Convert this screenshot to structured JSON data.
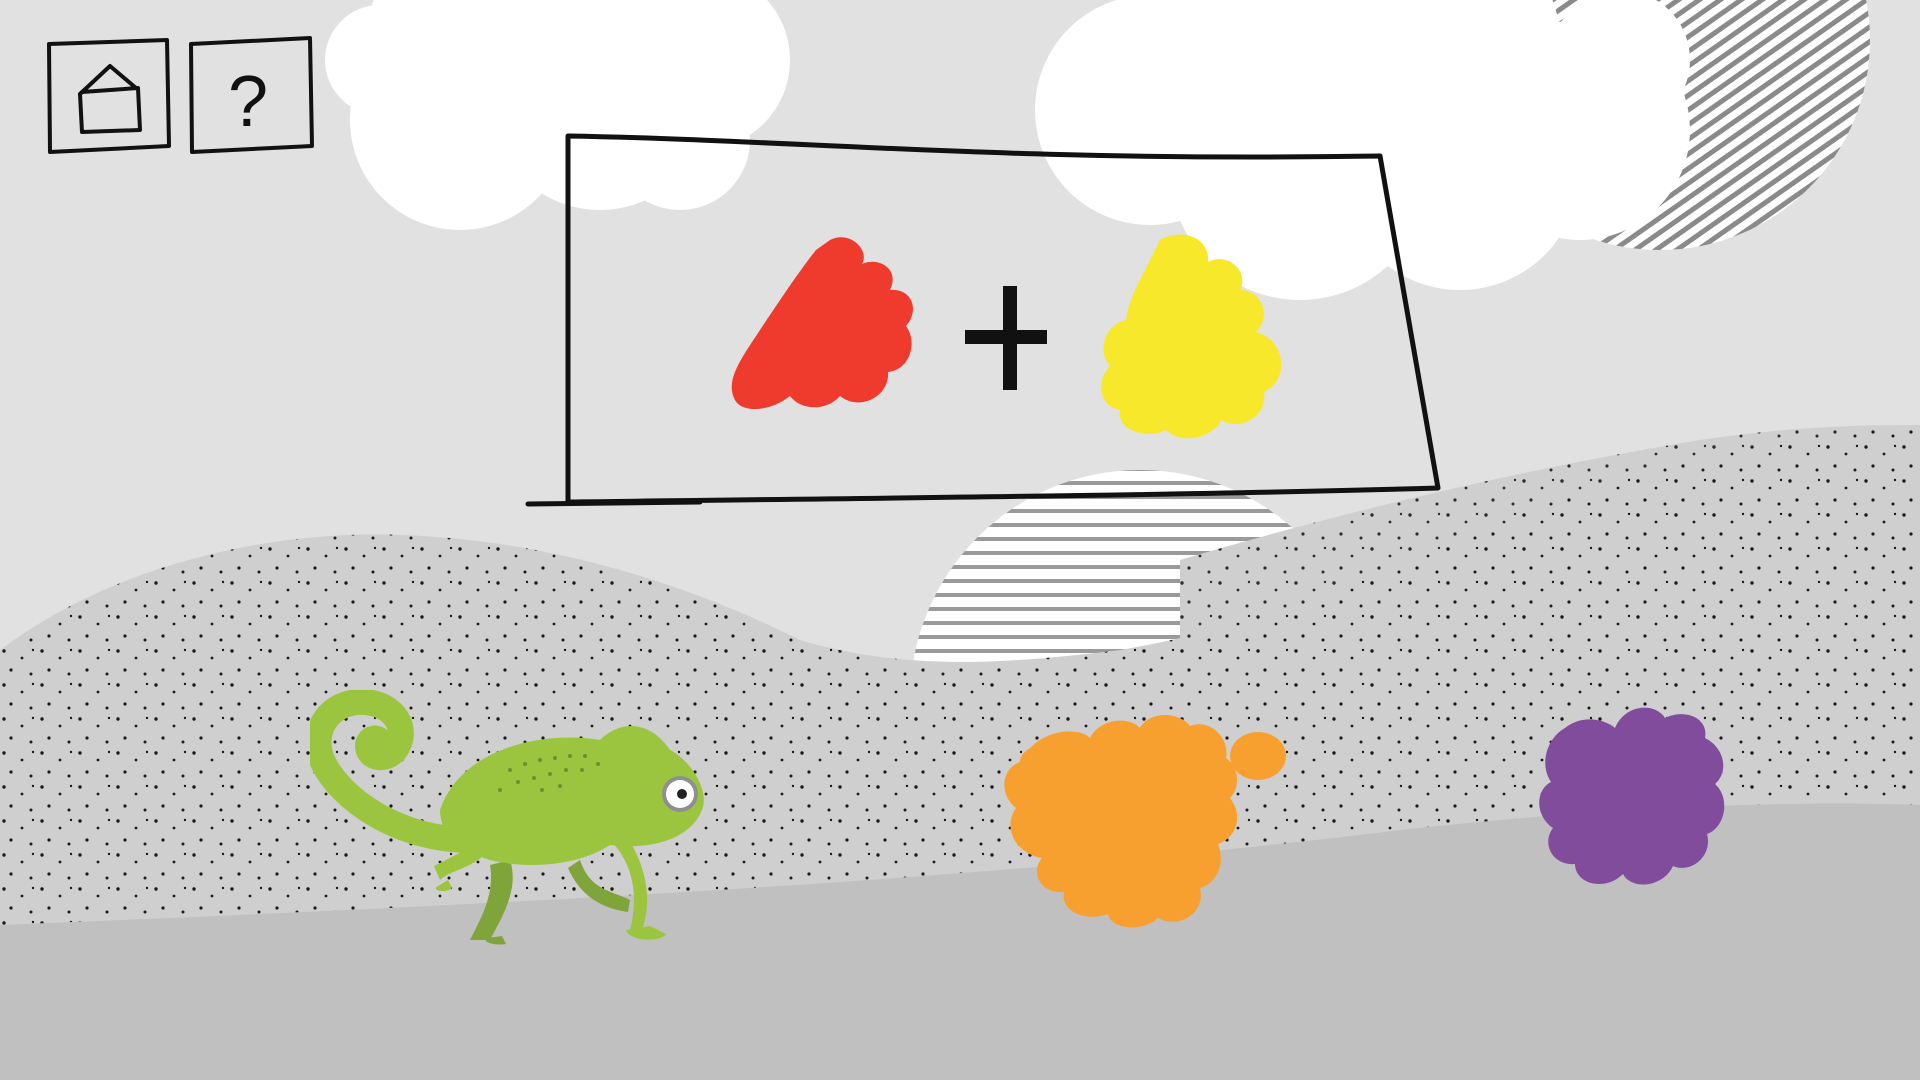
{
  "scene": {
    "name": "color-mixing-game",
    "background_color": "#e2e1e2",
    "hill_colors": [
      "#cfcfcf",
      "#c9c9c9",
      "#c0c0c0"
    ],
    "cloud_color": "#ffffff"
  },
  "controls": {
    "home_button": {
      "icon": "house-icon"
    },
    "help_button": {
      "icon": "question-mark-icon",
      "label": "?"
    }
  },
  "equation": {
    "operator": "+",
    "left_color": {
      "name": "red",
      "hex": "#ef3b2d"
    },
    "right_color": {
      "name": "yellow",
      "hex": "#f7e82b"
    }
  },
  "answer_options": [
    {
      "name": "orange",
      "hex": "#f8a02f"
    },
    {
      "name": "purple",
      "hex": "#824c9c"
    }
  ],
  "character": {
    "name": "chameleon",
    "color": "#9bc53f"
  }
}
